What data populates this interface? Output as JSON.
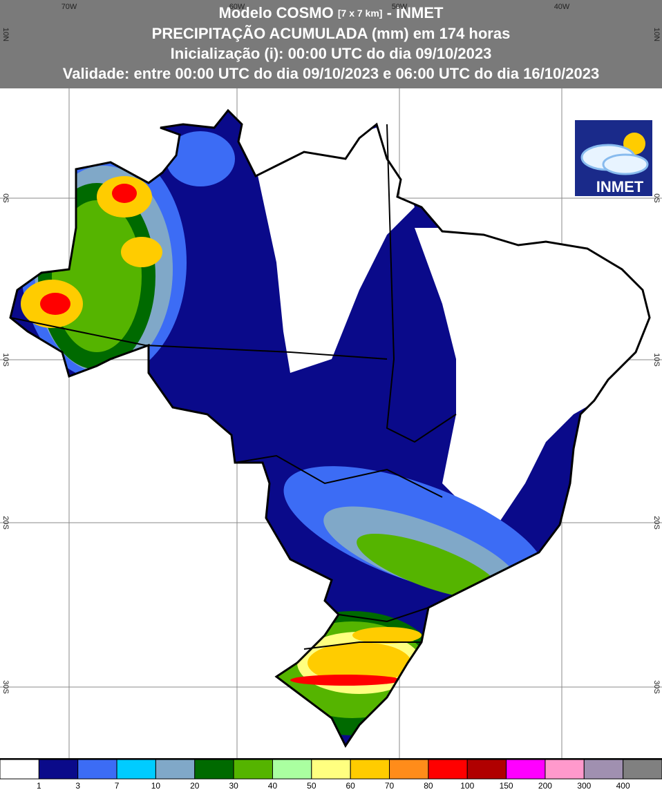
{
  "header": {
    "title_main": "Modelo COSMO",
    "title_resolution": "[7 x 7 km]",
    "title_source": "- INMET",
    "line2": "PRECIPITAÇÃO ACUMULADA (mm) em 174 horas",
    "line3": "Inicialização (i): 00:00 UTC do dia 09/10/2023",
    "line4": "Validade: entre 00:00 UTC do dia 09/10/2023 e 06:00 UTC do dia 16/10/2023"
  },
  "map": {
    "longitude_labels": [
      "70W",
      "60W",
      "50W",
      "40W"
    ],
    "latitude_labels": [
      "10N",
      "0S",
      "10S",
      "20S",
      "30S"
    ]
  },
  "logo": {
    "text": "INMET"
  },
  "legend": {
    "labels": [
      1,
      3,
      7,
      10,
      20,
      30,
      40,
      50,
      60,
      70,
      80,
      100,
      150,
      200,
      300,
      400
    ],
    "colors": [
      "#ffffff",
      "#0a0a8a",
      "#3c6cf5",
      "#00ccff",
      "#80a8c8",
      "#006a00",
      "#55b400",
      "#aaffa0",
      "#ffff80",
      "#ffcc00",
      "#ff8c1a",
      "#ff0000",
      "#b00000",
      "#ff00ff",
      "#ff99cc",
      "#a090b0",
      "#808080"
    ]
  }
}
